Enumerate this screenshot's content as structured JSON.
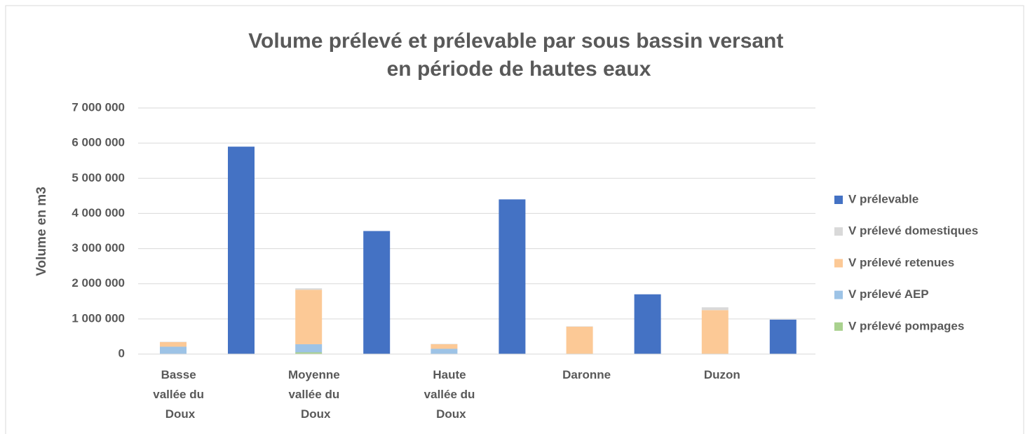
{
  "chart_data": {
    "type": "stacked_bar",
    "title": "Volume prélevé et prélevable par sous bassin versant en période de hautes eaux",
    "y_label": "Volume en m3",
    "categories": [
      "Basse vallée du Doux",
      "Moyenne vallée du Doux",
      "Haute vallée du Doux",
      "Daronne",
      "Duzon"
    ],
    "series": [
      {
        "name": "V prélevé pompages",
        "color": "#a9d18e",
        "stack": "preleve",
        "values": [
          10000,
          50000,
          5000,
          0,
          0
        ]
      },
      {
        "name": "V prélevé AEP",
        "color": "#9dc3e6",
        "stack": "preleve",
        "values": [
          200000,
          230000,
          145000,
          0,
          0
        ]
      },
      {
        "name": "V prélevé retenues",
        "color": "#fcc996",
        "stack": "preleve",
        "values": [
          130000,
          1550000,
          130000,
          780000,
          1250000
        ]
      },
      {
        "name": "V prélevé domestiques",
        "color": "#d9d9d9",
        "stack": "preleve",
        "values": [
          10000,
          40000,
          10000,
          10000,
          80000
        ]
      },
      {
        "name": "V prélevable",
        "color": "#4472c4",
        "stack": "prelevable",
        "values": [
          5900000,
          3500000,
          4400000,
          1700000,
          980000
        ]
      }
    ],
    "ylim": [
      0,
      7000000
    ],
    "yticks": [
      0,
      {
        "value": 1000000,
        "label": "1 000 000"
      },
      {
        "value": 2000000,
        "label": "2 000 000"
      },
      {
        "value": 3000000,
        "label": "3 000 000"
      },
      {
        "value": 4000000,
        "label": "4 000 000"
      },
      {
        "value": 5000000,
        "label": "5 000 000"
      },
      {
        "value": 6000000,
        "label": "6 000 000"
      },
      {
        "value": 7000000,
        "label": "7 000 000"
      }
    ],
    "grid": true,
    "legend": "right"
  }
}
